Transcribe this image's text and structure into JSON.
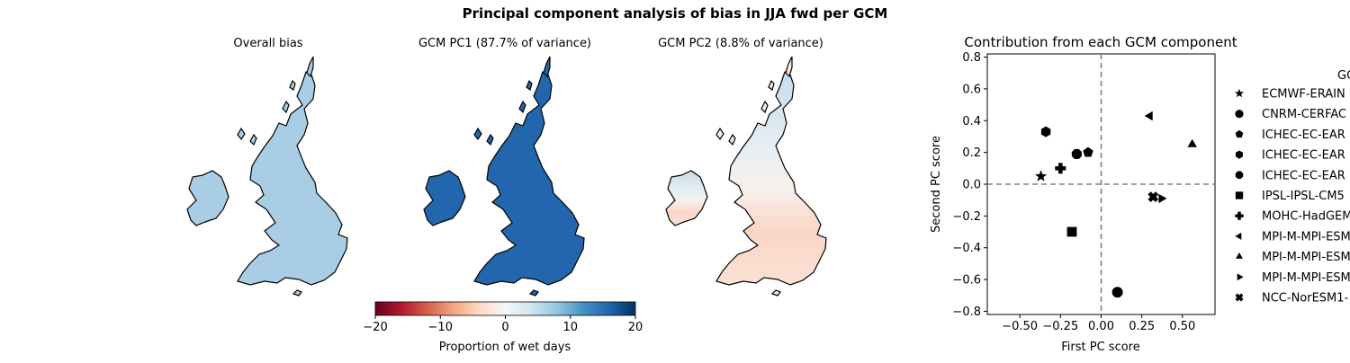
{
  "figure": {
    "suptitle": "Principal component analysis of bias in JJA fwd per GCM"
  },
  "maps": [
    {
      "title": "Overall bias",
      "style": "overall"
    },
    {
      "title": "GCM PC1 (87.7% of variance)",
      "style": "pc1"
    },
    {
      "title": "GCM PC2 (8.8% of variance)",
      "style": "pc2"
    }
  ],
  "colorbar": {
    "label": "Proportion of wet days",
    "range": [
      -20,
      20
    ],
    "ticks": [
      -20,
      -10,
      0,
      10,
      20
    ],
    "tick_labels": [
      "−20",
      "−10",
      "0",
      "10",
      "20"
    ],
    "colormap": "RdBu"
  },
  "legend": {
    "title": "GC",
    "placement": "right, outside plot (clipped)"
  },
  "chart_data": {
    "type": "scatter",
    "title": "Contribution from each GCM component",
    "xlabel": "First PC score",
    "ylabel": "Second PC score",
    "xlim": [
      -0.7,
      0.7
    ],
    "ylim": [
      -0.82,
      0.82
    ],
    "xticks": [
      -0.5,
      -0.25,
      0.0,
      0.25,
      0.5
    ],
    "xtick_labels": [
      "−0.50",
      "−0.25",
      "0.00",
      "0.25",
      "0.50"
    ],
    "yticks": [
      -0.8,
      -0.6,
      -0.4,
      -0.2,
      0.0,
      0.2,
      0.4,
      0.6,
      0.8
    ],
    "ytick_labels": [
      "−0.8",
      "−0.6",
      "−0.4",
      "−0.2",
      "0.0",
      "0.2",
      "0.4",
      "0.6",
      "0.8"
    ],
    "reference_lines": {
      "x": 0,
      "y": 0,
      "style": "dashed",
      "color": "#808080"
    },
    "grid": false,
    "series": [
      {
        "name": "ECMWF-ERAIN",
        "marker": "star",
        "x": -0.37,
        "y": 0.05
      },
      {
        "name": "CNRM-CERFAC",
        "marker": "circle",
        "x": 0.1,
        "y": -0.68
      },
      {
        "name": "ICHEC-EC-EAR",
        "marker": "pentagon",
        "x": -0.08,
        "y": 0.2
      },
      {
        "name": "ICHEC-EC-EAR",
        "marker": "hexagon",
        "x": -0.34,
        "y": 0.33
      },
      {
        "name": "ICHEC-EC-EAR",
        "marker": "octagon",
        "x": -0.15,
        "y": 0.19
      },
      {
        "name": "IPSL-IPSL-CM5",
        "marker": "square",
        "x": -0.18,
        "y": -0.3
      },
      {
        "name": "MOHC-HadGEM",
        "marker": "plus",
        "x": -0.25,
        "y": 0.1
      },
      {
        "name": "MPI-M-MPI-ESM",
        "marker": "triangle-left",
        "x": 0.3,
        "y": 0.43
      },
      {
        "name": "MPI-M-MPI-ESM",
        "marker": "triangle-up",
        "x": 0.56,
        "y": 0.25
      },
      {
        "name": "MPI-M-MPI-ESM",
        "marker": "triangle-right",
        "x": 0.37,
        "y": -0.09
      },
      {
        "name": "NCC-NorESM1-",
        "marker": "x",
        "x": 0.32,
        "y": -0.08
      }
    ]
  }
}
